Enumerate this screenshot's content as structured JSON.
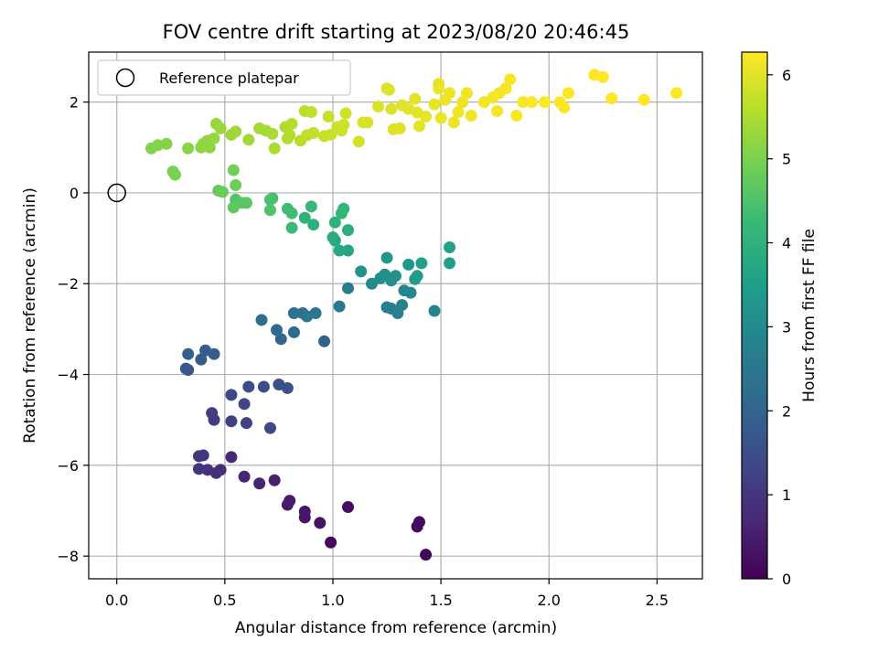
{
  "chart_data": {
    "type": "scatter",
    "title": "FOV centre drift starting at 2023/08/20 20:46:45",
    "xlabel": "Angular distance from reference (arcmin)",
    "ylabel": "Rotation from reference (arcmin)",
    "xlim": [
      -0.13,
      2.71
    ],
    "ylim": [
      -8.5,
      3.1
    ],
    "xticks": [
      0.0,
      0.5,
      1.0,
      1.5,
      2.0,
      2.5
    ],
    "xtick_labels": [
      "0.0",
      "0.5",
      "1.0",
      "1.5",
      "2.0",
      "2.5"
    ],
    "yticks": [
      -8,
      -6,
      -4,
      -2,
      0,
      2
    ],
    "ytick_labels": [
      "−8",
      "−6",
      "−4",
      "−2",
      "0",
      "2"
    ],
    "grid": true,
    "legend": {
      "position": "top-left",
      "entries": [
        "Reference platepar"
      ]
    },
    "reference_point": {
      "x": 0.0,
      "y": 0.0,
      "label": "Reference platepar"
    },
    "colorbar": {
      "label": "Hours from first FF file",
      "colormap": "viridis",
      "range": [
        0,
        6.27
      ],
      "ticks": [
        0,
        1,
        2,
        3,
        4,
        5,
        6
      ],
      "tick_labels": [
        "0",
        "1",
        "2",
        "3",
        "4",
        "5",
        "6"
      ],
      "gradient": [
        "#440154",
        "#482878",
        "#3e4989",
        "#31688e",
        "#26828e",
        "#1f9e89",
        "#35b779",
        "#6ece58",
        "#b5de2b",
        "#fde725"
      ]
    },
    "points": [
      [
        1.43,
        -7.97,
        0.05
      ],
      [
        0.99,
        -7.7,
        0.1
      ],
      [
        1.39,
        -7.35,
        0.15
      ],
      [
        1.4,
        -7.25,
        0.18
      ],
      [
        1.07,
        -6.92,
        0.25
      ],
      [
        0.94,
        -7.27,
        0.3
      ],
      [
        0.87,
        -7.15,
        0.35
      ],
      [
        0.87,
        -7.02,
        0.38
      ],
      [
        0.8,
        -6.78,
        0.45
      ],
      [
        0.79,
        -6.87,
        0.48
      ],
      [
        0.73,
        -6.33,
        0.55
      ],
      [
        0.66,
        -6.4,
        0.6
      ],
      [
        0.59,
        -6.25,
        0.65
      ],
      [
        0.53,
        -5.82,
        0.72
      ],
      [
        0.48,
        -6.1,
        0.78
      ],
      [
        0.46,
        -6.17,
        0.82
      ],
      [
        0.42,
        -6.1,
        0.88
      ],
      [
        0.38,
        -6.08,
        0.92
      ],
      [
        0.4,
        -5.78,
        0.97
      ],
      [
        0.38,
        -5.8,
        1.02
      ],
      [
        0.45,
        -5.0,
        1.1
      ],
      [
        0.44,
        -4.85,
        1.15
      ],
      [
        0.53,
        -5.03,
        1.2
      ],
      [
        0.6,
        -5.07,
        1.25
      ],
      [
        0.59,
        -4.65,
        1.3
      ],
      [
        0.53,
        -4.45,
        1.35
      ],
      [
        0.71,
        -5.18,
        1.4
      ],
      [
        0.61,
        -4.27,
        1.45
      ],
      [
        0.68,
        -4.27,
        1.5
      ],
      [
        0.75,
        -4.22,
        1.55
      ],
      [
        0.79,
        -4.3,
        1.6
      ],
      [
        0.33,
        -3.9,
        1.65
      ],
      [
        0.32,
        -3.87,
        1.7
      ],
      [
        0.39,
        -3.67,
        1.75
      ],
      [
        0.41,
        -3.47,
        1.8
      ],
      [
        0.45,
        -3.55,
        1.85
      ],
      [
        0.33,
        -3.55,
        1.9
      ],
      [
        0.96,
        -3.27,
        1.98
      ],
      [
        0.76,
        -3.22,
        2.05
      ],
      [
        0.74,
        -3.02,
        2.1
      ],
      [
        0.82,
        -3.07,
        2.15
      ],
      [
        0.67,
        -2.8,
        2.25
      ],
      [
        0.82,
        -2.65,
        2.35
      ],
      [
        0.86,
        -2.65,
        2.4
      ],
      [
        0.88,
        -2.72,
        2.45
      ],
      [
        0.92,
        -2.65,
        2.5
      ],
      [
        1.03,
        -2.5,
        2.55
      ],
      [
        1.07,
        -2.1,
        2.62
      ],
      [
        1.25,
        -2.52,
        2.65
      ],
      [
        1.27,
        -2.55,
        2.7
      ],
      [
        1.3,
        -2.65,
        2.75
      ],
      [
        1.32,
        -2.47,
        2.8
      ],
      [
        1.47,
        -2.6,
        2.85
      ],
      [
        1.33,
        -2.15,
        2.9
      ],
      [
        1.36,
        -2.2,
        2.95
      ],
      [
        1.18,
        -2.0,
        3.0
      ],
      [
        1.22,
        -1.88,
        3.05
      ],
      [
        1.24,
        -1.8,
        3.1
      ],
      [
        1.27,
        -1.93,
        3.15
      ],
      [
        1.29,
        -1.83,
        3.2
      ],
      [
        1.13,
        -1.73,
        3.25
      ],
      [
        1.25,
        -1.43,
        3.3
      ],
      [
        1.35,
        -1.58,
        3.35
      ],
      [
        1.38,
        -1.9,
        3.4
      ],
      [
        1.39,
        -1.83,
        3.45
      ],
      [
        1.41,
        -1.55,
        3.5
      ],
      [
        1.54,
        -1.55,
        3.55
      ],
      [
        1.54,
        -1.2,
        3.6
      ],
      [
        1.07,
        -1.27,
        3.7
      ],
      [
        1.03,
        -1.27,
        3.75
      ],
      [
        1.01,
        -1.05,
        3.8
      ],
      [
        1.0,
        -0.98,
        3.85
      ],
      [
        1.07,
        -0.82,
        3.9
      ],
      [
        0.91,
        -0.7,
        3.95
      ],
      [
        0.87,
        -0.55,
        4.0
      ],
      [
        1.01,
        -0.65,
        4.05
      ],
      [
        1.04,
        -0.45,
        4.1
      ],
      [
        1.05,
        -0.35,
        4.15
      ],
      [
        0.9,
        -0.3,
        4.2
      ],
      [
        0.81,
        -0.77,
        4.25
      ],
      [
        0.79,
        -0.35,
        4.3
      ],
      [
        0.81,
        -0.45,
        4.35
      ],
      [
        0.72,
        -0.12,
        4.4
      ],
      [
        0.71,
        -0.15,
        4.45
      ],
      [
        0.71,
        -0.38,
        4.5
      ],
      [
        0.55,
        -0.15,
        4.55
      ],
      [
        0.58,
        -0.22,
        4.6
      ],
      [
        0.6,
        -0.22,
        4.65
      ],
      [
        0.54,
        -0.32,
        4.7
      ],
      [
        0.47,
        0.05,
        4.75
      ],
      [
        0.49,
        0.02,
        4.8
      ],
      [
        0.55,
        0.17,
        4.85
      ],
      [
        0.54,
        0.5,
        4.9
      ],
      [
        0.26,
        0.47,
        4.95
      ],
      [
        0.27,
        0.4,
        5.0
      ],
      [
        0.16,
        0.98,
        5.05
      ],
      [
        0.19,
        1.05,
        5.08
      ],
      [
        0.23,
        1.08,
        5.1
      ],
      [
        0.33,
        0.98,
        5.12
      ],
      [
        0.39,
        1.0,
        5.15
      ],
      [
        0.4,
        1.08,
        5.18
      ],
      [
        0.43,
        1.0,
        5.2
      ],
      [
        0.42,
        1.15,
        5.22
      ],
      [
        0.45,
        1.2,
        5.25
      ],
      [
        0.46,
        1.52,
        5.28
      ],
      [
        0.48,
        1.42,
        5.3
      ],
      [
        0.53,
        1.28,
        5.33
      ],
      [
        0.55,
        1.35,
        5.35
      ],
      [
        0.61,
        1.17,
        5.38
      ],
      [
        0.66,
        1.42,
        5.4
      ],
      [
        0.69,
        1.37,
        5.42
      ],
      [
        0.72,
        1.3,
        5.45
      ],
      [
        0.73,
        0.98,
        5.48
      ],
      [
        0.78,
        1.45,
        5.5
      ],
      [
        0.79,
        1.2,
        5.52
      ],
      [
        0.8,
        1.27,
        5.55
      ],
      [
        0.81,
        1.52,
        5.58
      ],
      [
        0.85,
        1.15,
        5.6
      ],
      [
        0.87,
        1.8,
        5.62
      ],
      [
        0.88,
        1.27,
        5.65
      ],
      [
        0.9,
        1.78,
        5.67
      ],
      [
        0.91,
        1.32,
        5.7
      ],
      [
        0.96,
        1.25,
        5.72
      ],
      [
        0.98,
        1.68,
        5.74
      ],
      [
        0.99,
        1.28,
        5.76
      ],
      [
        1.02,
        1.45,
        5.78
      ],
      [
        1.04,
        1.37,
        5.8
      ],
      [
        1.05,
        1.5,
        5.82
      ],
      [
        1.06,
        1.75,
        5.84
      ],
      [
        1.12,
        1.13,
        5.86
      ],
      [
        1.14,
        1.55,
        5.88
      ],
      [
        1.16,
        1.55,
        5.9
      ],
      [
        1.21,
        1.9,
        5.92
      ],
      [
        1.25,
        2.3,
        5.94
      ],
      [
        1.26,
        2.27,
        5.95
      ],
      [
        1.27,
        1.85,
        5.96
      ],
      [
        1.28,
        1.4,
        5.97
      ],
      [
        1.31,
        1.42,
        5.98
      ],
      [
        1.32,
        1.93,
        5.99
      ],
      [
        1.35,
        1.85,
        6.0
      ],
      [
        1.38,
        2.07,
        6.01
      ],
      [
        1.39,
        1.77,
        6.02
      ],
      [
        1.4,
        1.47,
        6.03
      ],
      [
        1.43,
        1.68,
        6.04
      ],
      [
        1.47,
        1.95,
        6.05
      ],
      [
        1.49,
        2.4,
        6.06
      ],
      [
        1.49,
        2.3,
        6.07
      ],
      [
        1.5,
        1.65,
        6.08
      ],
      [
        1.52,
        2.05,
        6.09
      ],
      [
        1.54,
        2.2,
        6.1
      ],
      [
        1.56,
        1.55,
        6.11
      ],
      [
        1.58,
        1.78,
        6.12
      ],
      [
        1.6,
        2.0,
        6.13
      ],
      [
        1.62,
        2.2,
        6.14
      ],
      [
        1.64,
        1.7,
        6.15
      ],
      [
        1.7,
        2.0,
        6.16
      ],
      [
        1.74,
        2.1,
        6.17
      ],
      [
        1.76,
        1.8,
        6.18
      ],
      [
        1.77,
        2.2,
        6.19
      ],
      [
        1.8,
        2.3,
        6.2
      ],
      [
        1.82,
        2.5,
        6.21
      ],
      [
        1.85,
        1.7,
        6.22
      ],
      [
        1.88,
        2.0,
        6.23
      ],
      [
        1.92,
        2.0,
        6.24
      ],
      [
        1.98,
        2.0,
        6.25
      ],
      [
        2.05,
        2.0,
        6.26
      ],
      [
        2.07,
        1.88,
        6.26
      ],
      [
        2.09,
        2.2,
        6.27
      ],
      [
        2.21,
        2.6,
        6.27
      ],
      [
        2.25,
        2.55,
        6.27
      ],
      [
        2.29,
        2.08,
        6.27
      ],
      [
        2.44,
        2.05,
        6.27
      ],
      [
        2.59,
        2.2,
        6.27
      ]
    ]
  }
}
